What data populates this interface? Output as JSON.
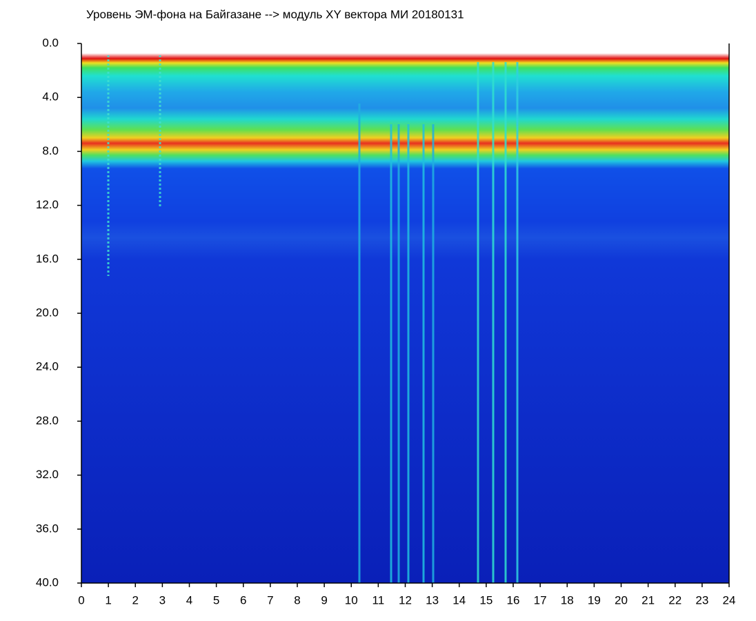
{
  "chart_data": {
    "type": "spectrogram",
    "title": "Уровень ЭМ-фона на Байгазане  -->  модуль XY вектора МИ  20180131",
    "xlim": [
      0,
      24
    ],
    "xticks": [
      0,
      1,
      2,
      3,
      4,
      5,
      6,
      7,
      8,
      9,
      10,
      11,
      12,
      13,
      14,
      15,
      16,
      17,
      18,
      19,
      20,
      21,
      22,
      23,
      24
    ],
    "ylim": [
      40,
      0
    ],
    "yticks": [
      {
        "value": 0,
        "label": "0.0"
      },
      {
        "value": 4,
        "label": "4.0"
      },
      {
        "value": 8,
        "label": "8.0"
      },
      {
        "value": 12,
        "label": "12.0"
      },
      {
        "value": 16,
        "label": "16.0"
      },
      {
        "value": 20,
        "label": "20.0"
      },
      {
        "value": 24,
        "label": "24.0"
      },
      {
        "value": 28,
        "label": "28.0"
      },
      {
        "value": 32,
        "label": "32.0"
      },
      {
        "value": 36,
        "label": "36.0"
      },
      {
        "value": 40,
        "label": "40.0"
      }
    ]
  }
}
